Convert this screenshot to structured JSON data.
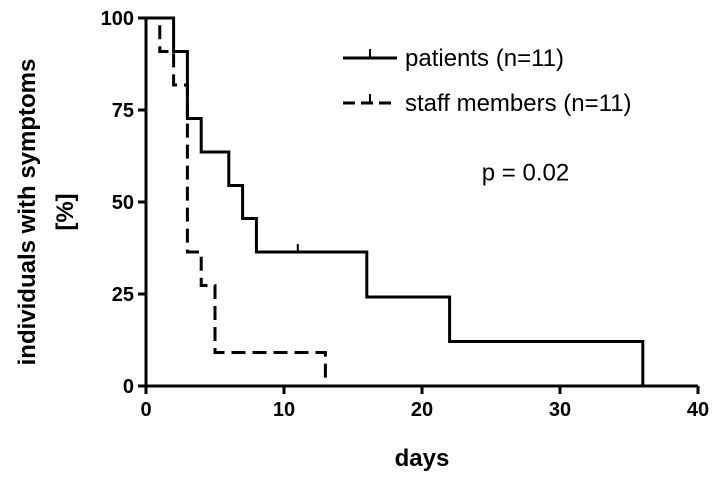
{
  "chart_data": {
    "type": "line",
    "subtype": "kaplan-meier step",
    "title": "",
    "xlabel": "days",
    "ylabel_lines": [
      "individuals with symptoms",
      "[%]"
    ],
    "xlim": [
      0,
      40
    ],
    "ylim": [
      0,
      100
    ],
    "x_ticks": [
      0,
      10,
      20,
      30,
      40
    ],
    "y_ticks": [
      0,
      25,
      50,
      75,
      100
    ],
    "grid": false,
    "legend_position": "top-right",
    "series": [
      {
        "name": "patients (n=11)",
        "line_style": "solid",
        "color": "#000000",
        "x": [
          0,
          2,
          3,
          4,
          6,
          7,
          8,
          16,
          22,
          36
        ],
        "y": [
          100,
          90.9,
          72.7,
          63.6,
          54.5,
          45.5,
          36.4,
          24.2,
          12.1,
          0
        ],
        "censored": [
          {
            "x": 11,
            "y": 36.4
          }
        ]
      },
      {
        "name": "staff members (n=11)",
        "line_style": "dashed",
        "color": "#000000",
        "x": [
          0,
          1,
          2,
          3,
          4,
          5,
          13
        ],
        "y": [
          100,
          90.9,
          81.8,
          36.4,
          27.3,
          9.1,
          0
        ],
        "censored": []
      }
    ],
    "annotations": [
      {
        "text": "p = 0.02",
        "x": 27.5,
        "y": 58
      }
    ]
  }
}
